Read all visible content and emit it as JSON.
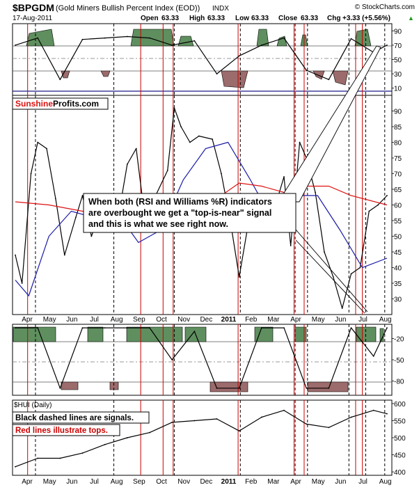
{
  "header": {
    "symbol": "$BPGDM",
    "name": "(Gold Miners Bullish Percent Index (EOD))",
    "exchange": "INDX",
    "watermark": "© StockCharts.com",
    "date": "17-Aug-2011",
    "open_label": "Open",
    "open_value": "63.33",
    "high_label": "High",
    "high_value": "63.33",
    "low_label": "Low",
    "low_value": "63.33",
    "close_label": "Close",
    "close_value": "63.33",
    "chg_label": "Chg",
    "chg_value": "+3.33 (+5.56%)",
    "change_arrow": "▲"
  },
  "logo": {
    "part1": "Sunshine",
    "part2": "Profits.com"
  },
  "annotation": {
    "lines": [
      "When both (RSI and Williams %R) indicators",
      "are overbought we get a \"top-is-near\" signal",
      "and this is what we see right now."
    ]
  },
  "notes": {
    "black_dashed": "Black dashed lines are signals.",
    "red_lines": "Red lines illustrate tops."
  },
  "hui_label": "$HUI (Daily)",
  "x_axis": {
    "labels": [
      {
        "label": "Apr",
        "bold": false
      },
      {
        "label": "May",
        "bold": false
      },
      {
        "label": "Jun",
        "bold": false
      },
      {
        "label": "Jul",
        "bold": false
      },
      {
        "label": "Aug",
        "bold": false
      },
      {
        "label": "Sep",
        "bold": false
      },
      {
        "label": "Oct",
        "bold": false
      },
      {
        "label": "Nov",
        "bold": false
      },
      {
        "label": "Dec",
        "bold": false
      },
      {
        "label": "2011",
        "bold": true
      },
      {
        "label": "Feb",
        "bold": false
      },
      {
        "label": "Mar",
        "bold": false
      },
      {
        "label": "Apr",
        "bold": false
      },
      {
        "label": "May",
        "bold": false
      },
      {
        "label": "Jun",
        "bold": false
      },
      {
        "label": "Jul",
        "bold": false
      },
      {
        "label": "Aug",
        "bold": false
      }
    ]
  },
  "colors": {
    "price_line": "#000000",
    "ma_short": "#1a1aa8",
    "ma_long": "#dd1111",
    "overbought_fill": "#5f8f5f",
    "oversold_fill": "#9c6b6b",
    "red_marker": "#cc0000",
    "signal_line": "#000000",
    "logo_red": "#dd1111"
  },
  "chart_data": [
    {
      "type": "line",
      "name": "RSI",
      "ylim": [
        0,
        100
      ],
      "ticks": [
        "90",
        "70",
        "50",
        "30",
        "10"
      ],
      "reference_lines": [
        70,
        50,
        30
      ],
      "month_index": [
        0,
        1,
        2,
        3,
        4,
        5,
        6,
        7,
        8,
        9,
        10,
        11,
        12,
        13,
        14,
        15,
        16,
        16.6
      ],
      "values": [
        70,
        80,
        22,
        78,
        80,
        82,
        80,
        70,
        76,
        30,
        55,
        70,
        80,
        35,
        22,
        79,
        60,
        70
      ]
    },
    {
      "type": "line",
      "name": "$BPGDM",
      "ylim": [
        25,
        95
      ],
      "ticks": [
        "90",
        "85",
        "80",
        "75",
        "70",
        "65",
        "60",
        "55",
        "50",
        "45",
        "40",
        "35",
        "30"
      ],
      "month_index": [
        0,
        0.3,
        0.7,
        1.0,
        1.4,
        1.8,
        2.2,
        2.7,
        3.0,
        3.4,
        4.0,
        4.5,
        5.0,
        5.4,
        5.8,
        6.2,
        6.8,
        7.1,
        7.4,
        7.8,
        8.2,
        8.8,
        9.2,
        9.6,
        10.0,
        10.5,
        11.0,
        11.5,
        12.0,
        12.3,
        12.7,
        13.0,
        13.4,
        13.8,
        14.2,
        14.6,
        15.0,
        15.4,
        15.8,
        16.2,
        16.6
      ],
      "values": [
        44,
        35,
        70,
        80,
        78,
        62,
        44,
        56,
        63,
        50,
        62,
        52,
        73,
        78,
        55,
        62,
        71,
        91,
        85,
        80,
        82,
        81,
        70,
        55,
        37,
        58,
        60,
        57,
        69,
        47,
        80,
        75,
        64,
        45,
        37,
        27,
        38,
        40,
        58,
        60,
        63
      ],
      "moving_averages": [
        {
          "label": "short MA",
          "month_index": [
            0,
            0.6,
            1.5,
            2.5,
            3.5,
            4.5,
            5.5,
            6.5,
            7.5,
            8.5,
            9.5,
            10.5,
            11.5,
            12.5,
            13.5,
            14.5,
            15.5,
            16.6
          ],
          "values": [
            36,
            31,
            50,
            58,
            56,
            58,
            48,
            52,
            68,
            78,
            80,
            68,
            55,
            63,
            63,
            52,
            40,
            43
          ]
        },
        {
          "label": "long MA",
          "month_index": [
            0,
            1.5,
            3.0,
            4.5,
            6.0,
            7.5,
            9.0,
            10.0,
            11.0,
            12.0,
            13.0,
            14.0,
            15.0,
            16.6
          ],
          "values": [
            61,
            60,
            58,
            56,
            56,
            58,
            62,
            67,
            66,
            64,
            66,
            66,
            63,
            60
          ]
        }
      ]
    },
    {
      "type": "line",
      "name": "Williams %R",
      "ylim": [
        -100,
        0
      ],
      "ticks": [
        "-20",
        "-50",
        "-80"
      ],
      "reference_lines": [
        -20,
        -50,
        -80
      ],
      "month_index": [
        0,
        1,
        2,
        3,
        4,
        5,
        6,
        7,
        8,
        9,
        10,
        11,
        12,
        13,
        14,
        15,
        16,
        16.6
      ],
      "values": [
        -5,
        -5,
        -90,
        -5,
        -5,
        -5,
        -5,
        -50,
        -10,
        -90,
        -90,
        -5,
        -5,
        -90,
        -90,
        -5,
        -45,
        -5
      ]
    },
    {
      "type": "line",
      "name": "$HUI (Daily)",
      "ylim": [
        390,
        610
      ],
      "ticks": [
        "600",
        "550",
        "500",
        "450",
        "400"
      ],
      "month_index": [
        0,
        1,
        2,
        3,
        4,
        5,
        6,
        7,
        8,
        9,
        10,
        11,
        12,
        13,
        14,
        15,
        16,
        16.6
      ],
      "values": [
        415,
        440,
        440,
        455,
        480,
        500,
        515,
        545,
        550,
        555,
        520,
        560,
        580,
        540,
        530,
        560,
        580,
        570
      ]
    }
  ]
}
